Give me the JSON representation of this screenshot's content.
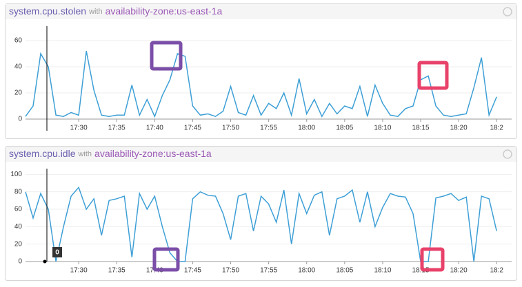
{
  "chart_data": [
    {
      "type": "line",
      "title": "system.cpu.stolen",
      "scope_prefix": "with",
      "scope": "availability-zone:us-east-1a",
      "x": [
        "17:23",
        "17:24",
        "17:25",
        "17:26",
        "17:27",
        "17:28",
        "17:29",
        "17:30",
        "17:31",
        "17:32",
        "17:33",
        "17:34",
        "17:35",
        "17:36",
        "17:37",
        "17:38",
        "17:39",
        "17:40",
        "17:41",
        "17:42",
        "17:43",
        "17:44",
        "17:45",
        "17:46",
        "17:47",
        "17:48",
        "17:49",
        "17:50",
        "17:51",
        "17:52",
        "17:53",
        "17:54",
        "17:55",
        "17:56",
        "17:57",
        "17:58",
        "17:59",
        "18:00",
        "18:01",
        "18:02",
        "18:03",
        "18:04",
        "18:05",
        "18:06",
        "18:07",
        "18:08",
        "18:09",
        "18:10",
        "18:11",
        "18:12",
        "18:13",
        "18:14",
        "18:15",
        "18:16",
        "18:17",
        "18:18",
        "18:19",
        "18:20",
        "18:21",
        "18:22",
        "18:23",
        "18:24",
        "18:25"
      ],
      "series": [
        {
          "color": "#3d9fd6",
          "values": [
            2,
            10,
            50,
            40,
            3,
            2,
            5,
            3,
            52,
            22,
            3,
            2,
            3,
            3,
            26,
            3,
            15,
            2,
            18,
            30,
            50,
            48,
            10,
            3,
            4,
            2,
            6,
            25,
            5,
            3,
            18,
            3,
            12,
            8,
            20,
            3,
            31,
            4,
            15,
            2,
            12,
            4,
            10,
            8,
            25,
            2,
            26,
            12,
            3,
            2,
            8,
            10,
            30,
            33,
            10,
            3,
            2,
            3,
            4,
            24,
            47,
            3,
            17
          ]
        }
      ],
      "ylim": [
        0,
        70
      ],
      "yticks": [
        0,
        20,
        40,
        60
      ],
      "xticks": [
        "17:30",
        "17:35",
        "17:40",
        "17:45",
        "17:50",
        "17:55",
        "18:00",
        "18:05",
        "18:10",
        "18:15",
        "18:20",
        {
          "value": "18:25",
          "label": "18:2"
        }
      ],
      "grid": true
    },
    {
      "type": "line",
      "title": "system.cpu.idle",
      "scope_prefix": "with",
      "scope": "availability-zone:us-east-1a",
      "x": [
        "17:23",
        "17:24",
        "17:25",
        "17:26",
        "17:27",
        "17:28",
        "17:29",
        "17:30",
        "17:31",
        "17:32",
        "17:33",
        "17:34",
        "17:35",
        "17:36",
        "17:37",
        "17:38",
        "17:39",
        "17:40",
        "17:41",
        "17:42",
        "17:43",
        "17:44",
        "17:45",
        "17:46",
        "17:47",
        "17:48",
        "17:49",
        "17:50",
        "17:51",
        "17:52",
        "17:53",
        "17:54",
        "17:55",
        "17:56",
        "17:57",
        "17:58",
        "17:59",
        "18:00",
        "18:01",
        "18:02",
        "18:03",
        "18:04",
        "18:05",
        "18:06",
        "18:07",
        "18:08",
        "18:09",
        "18:10",
        "18:11",
        "18:12",
        "18:13",
        "18:14",
        "18:15",
        "18:16",
        "18:17",
        "18:18",
        "18:19",
        "18:20",
        "18:21",
        "18:22",
        "18:23",
        "18:24",
        "18:25"
      ],
      "series": [
        {
          "color": "#3d9fd6",
          "values": [
            80,
            50,
            78,
            60,
            0,
            40,
            75,
            85,
            60,
            72,
            30,
            70,
            72,
            75,
            5,
            78,
            60,
            75,
            40,
            10,
            0,
            0,
            72,
            80,
            76,
            75,
            55,
            25,
            75,
            78,
            35,
            75,
            66,
            45,
            82,
            20,
            78,
            55,
            76,
            80,
            30,
            72,
            75,
            82,
            45,
            80,
            40,
            62,
            78,
            75,
            74,
            55,
            0,
            0,
            73,
            75,
            78,
            70,
            74,
            0,
            75,
            72,
            35
          ]
        }
      ],
      "ylim": [
        0,
        105
      ],
      "yticks": [
        0,
        20,
        40,
        60,
        80,
        100
      ],
      "xticks": [
        "17:30",
        "17:35",
        "17:40",
        "17:45",
        "17:50",
        "17:55",
        "18:00",
        "18:05",
        "18:10",
        "18:15",
        "18:20",
        {
          "value": "18:25",
          "label": "18:2"
        }
      ],
      "grid": true,
      "annotation": "0"
    }
  ]
}
